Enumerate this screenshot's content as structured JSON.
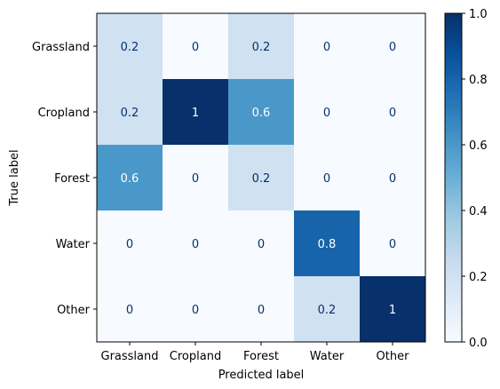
{
  "chart_data": {
    "type": "heatmap",
    "title": "",
    "xlabel": "Predicted label",
    "ylabel": "True label",
    "x_categories": [
      "Grassland",
      "Cropland",
      "Forest",
      "Water",
      "Other"
    ],
    "y_categories": [
      "Grassland",
      "Cropland",
      "Forest",
      "Water",
      "Other"
    ],
    "values": [
      [
        0.2,
        0,
        0.2,
        0,
        0
      ],
      [
        0.2,
        1,
        0.6,
        0,
        0
      ],
      [
        0.6,
        0,
        0.2,
        0,
        0
      ],
      [
        0,
        0,
        0,
        0.8,
        0
      ],
      [
        0,
        0,
        0,
        0.2,
        1
      ]
    ],
    "cell_labels": [
      [
        "0.2",
        "0",
        "0.2",
        "0",
        "0"
      ],
      [
        "0.2",
        "1",
        "0.6",
        "0",
        "0"
      ],
      [
        "0.6",
        "0",
        "0.2",
        "0",
        "0"
      ],
      [
        "0",
        "0",
        "0",
        "0.8",
        "0"
      ],
      [
        "0",
        "0",
        "0",
        "0.2",
        "1"
      ]
    ],
    "colorbar": {
      "range": [
        0,
        1
      ],
      "ticks": [
        0.0,
        0.2,
        0.4,
        0.6,
        0.8,
        1.0
      ],
      "tick_labels": [
        "0.0",
        "0.2",
        "0.4",
        "0.6",
        "0.8",
        "1.0"
      ],
      "colormap": "Blues"
    },
    "grid": false
  }
}
